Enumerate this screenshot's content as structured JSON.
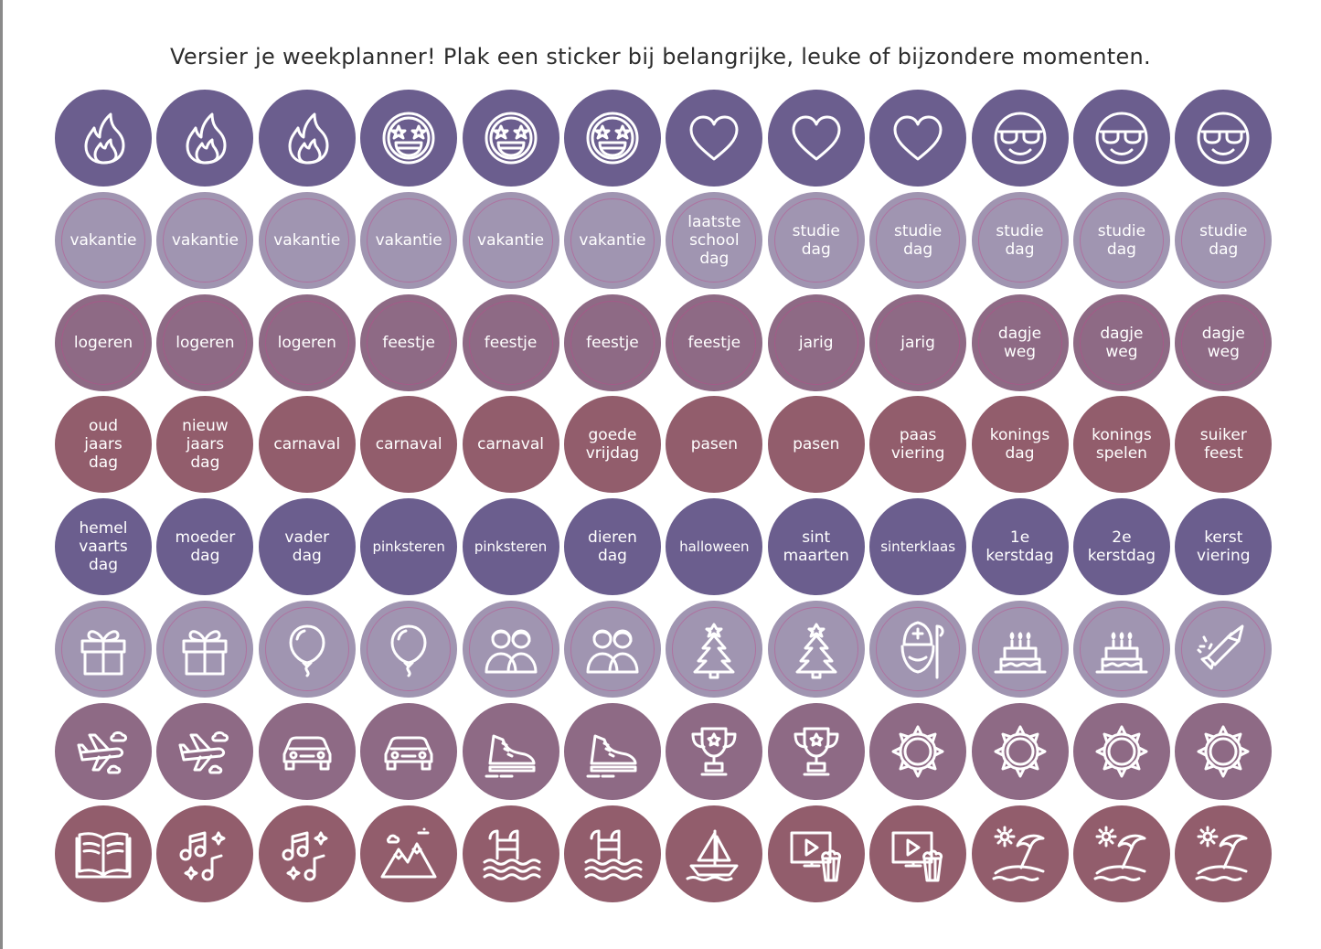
{
  "header": {
    "text": "Versier je weekplanner! Plak een sticker bij belangrijke, leuke of bijzondere momenten."
  },
  "colors": {
    "purple": "#6b5e8e",
    "lavender": "#a095b1",
    "mauve": "#8e6a85",
    "wine": "#925d6c"
  },
  "rows": [
    {
      "color": "purple",
      "stickers": [
        {
          "icon": "fire-icon"
        },
        {
          "icon": "fire-icon"
        },
        {
          "icon": "fire-icon"
        },
        {
          "icon": "star-eyes-face-icon"
        },
        {
          "icon": "star-eyes-face-icon"
        },
        {
          "icon": "star-eyes-face-icon"
        },
        {
          "icon": "heart-icon"
        },
        {
          "icon": "heart-icon"
        },
        {
          "icon": "heart-icon"
        },
        {
          "icon": "sunglasses-face-icon"
        },
        {
          "icon": "sunglasses-face-icon"
        },
        {
          "icon": "sunglasses-face-icon"
        }
      ]
    },
    {
      "color": "lavender",
      "ring": true,
      "stickers": [
        {
          "label": "vakantie"
        },
        {
          "label": "vakantie"
        },
        {
          "label": "vakantie"
        },
        {
          "label": "vakantie"
        },
        {
          "label": "vakantie"
        },
        {
          "label": "vakantie"
        },
        {
          "label": "laatste\nschool\ndag"
        },
        {
          "label": "studie\ndag"
        },
        {
          "label": "studie\ndag"
        },
        {
          "label": "studie\ndag"
        },
        {
          "label": "studie\ndag"
        },
        {
          "label": "studie\ndag"
        }
      ]
    },
    {
      "color": "mauve",
      "ring": true,
      "stickers": [
        {
          "label": "logeren"
        },
        {
          "label": "logeren"
        },
        {
          "label": "logeren"
        },
        {
          "label": "feestje"
        },
        {
          "label": "feestje"
        },
        {
          "label": "feestje"
        },
        {
          "label": "feestje"
        },
        {
          "label": "jarig"
        },
        {
          "label": "jarig"
        },
        {
          "label": "dagje\nweg"
        },
        {
          "label": "dagje\nweg"
        },
        {
          "label": "dagje\nweg"
        }
      ]
    },
    {
      "color": "wine",
      "stickers": [
        {
          "label": "oud\njaars\ndag"
        },
        {
          "label": "nieuw\njaars\ndag"
        },
        {
          "label": "carnaval"
        },
        {
          "label": "carnaval"
        },
        {
          "label": "carnaval"
        },
        {
          "label": "goede\nvrijdag"
        },
        {
          "label": "pasen"
        },
        {
          "label": "pasen"
        },
        {
          "label": "paas\nviering"
        },
        {
          "label": "konings\ndag"
        },
        {
          "label": "konings\nspelen"
        },
        {
          "label": "suiker\nfeest"
        }
      ]
    },
    {
      "color": "purple",
      "stickers": [
        {
          "label": "hemel\nvaarts\ndag"
        },
        {
          "label": "moeder\ndag"
        },
        {
          "label": "vader\ndag"
        },
        {
          "label": "pinksteren",
          "small": true
        },
        {
          "label": "pinksteren",
          "small": true
        },
        {
          "label": "dieren\ndag"
        },
        {
          "label": "halloween",
          "small": true
        },
        {
          "label": "sint\nmaarten"
        },
        {
          "label": "sinterklaas",
          "small": true
        },
        {
          "label": "1e\nkerstdag"
        },
        {
          "label": "2e\nkerstdag"
        },
        {
          "label": "kerst\nviering"
        }
      ]
    },
    {
      "color": "lavender",
      "ring": true,
      "stickers": [
        {
          "icon": "gift-icon"
        },
        {
          "icon": "gift-icon"
        },
        {
          "icon": "balloon-icon"
        },
        {
          "icon": "balloon-icon"
        },
        {
          "icon": "grandparents-icon"
        },
        {
          "icon": "grandparents-icon"
        },
        {
          "icon": "christmas-tree-icon"
        },
        {
          "icon": "christmas-tree-icon"
        },
        {
          "icon": "sinterklaas-icon"
        },
        {
          "icon": "birthday-cake-icon"
        },
        {
          "icon": "birthday-cake-icon"
        },
        {
          "icon": "firework-rocket-icon"
        }
      ]
    },
    {
      "color": "mauve",
      "stickers": [
        {
          "icon": "airplane-icon"
        },
        {
          "icon": "airplane-icon"
        },
        {
          "icon": "car-icon"
        },
        {
          "icon": "car-icon"
        },
        {
          "icon": "sneaker-icon"
        },
        {
          "icon": "sneaker-icon"
        },
        {
          "icon": "trophy-icon"
        },
        {
          "icon": "trophy-icon"
        },
        {
          "icon": "sun-icon"
        },
        {
          "icon": "sun-icon"
        },
        {
          "icon": "sun-icon"
        },
        {
          "icon": "sun-icon"
        }
      ]
    },
    {
      "color": "wine",
      "stickers": [
        {
          "icon": "open-book-icon"
        },
        {
          "icon": "music-notes-icon"
        },
        {
          "icon": "music-notes-icon"
        },
        {
          "icon": "mountains-icon"
        },
        {
          "icon": "swimming-pool-icon"
        },
        {
          "icon": "swimming-pool-icon"
        },
        {
          "icon": "sailboat-icon"
        },
        {
          "icon": "movie-popcorn-icon"
        },
        {
          "icon": "movie-popcorn-icon"
        },
        {
          "icon": "beach-umbrella-icon"
        },
        {
          "icon": "beach-umbrella-icon"
        },
        {
          "icon": "beach-umbrella-icon"
        }
      ]
    }
  ]
}
